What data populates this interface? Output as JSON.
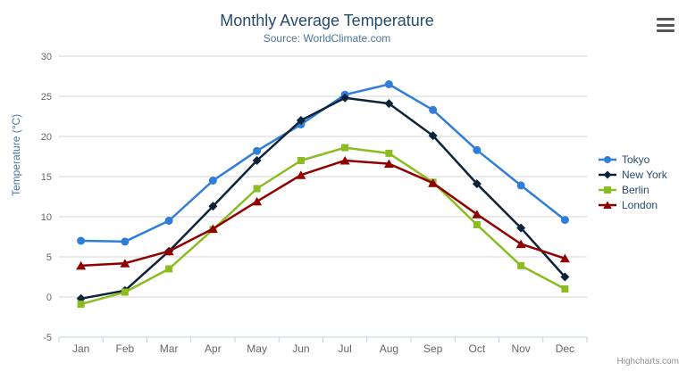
{
  "header": {
    "title": "Monthly Average Temperature",
    "subtitle": "Source: WorldClimate.com"
  },
  "export_menu": {
    "icon": "hamburger-icon",
    "tooltip": "Chart context menu"
  },
  "credits": {
    "label": "Highcharts.com"
  },
  "colors": {
    "title": "#274b6d",
    "subtitle": "#4d759e",
    "axis_label": "#666666",
    "axis_line": "#c0d0e0",
    "gridline": "#d6d6d6",
    "legend_text": "#274b6d",
    "credits_text": "#909090"
  },
  "chart_data": {
    "type": "line",
    "title": "Monthly Average Temperature",
    "subtitle": "Source: WorldClimate.com",
    "categories": [
      "Jan",
      "Feb",
      "Mar",
      "Apr",
      "May",
      "Jun",
      "Jul",
      "Aug",
      "Sep",
      "Oct",
      "Nov",
      "Dec"
    ],
    "series": [
      {
        "name": "Tokyo",
        "color": "#2f7ed8",
        "marker": "circle",
        "values": [
          7.0,
          6.9,
          9.5,
          14.5,
          18.2,
          21.5,
          25.2,
          26.5,
          23.3,
          18.3,
          13.9,
          9.6
        ]
      },
      {
        "name": "New York",
        "color": "#0d233a",
        "marker": "diamond",
        "values": [
          -0.2,
          0.8,
          5.7,
          11.3,
          17.0,
          22.0,
          24.8,
          24.1,
          20.1,
          14.1,
          8.6,
          2.5
        ]
      },
      {
        "name": "Berlin",
        "color": "#8bbc21",
        "marker": "square",
        "values": [
          -0.9,
          0.6,
          3.5,
          8.4,
          13.5,
          17.0,
          18.6,
          17.9,
          14.3,
          9.0,
          3.9,
          1.0
        ]
      },
      {
        "name": "London",
        "color": "#910000",
        "marker": "triangle",
        "values": [
          3.9,
          4.2,
          5.7,
          8.5,
          11.9,
          15.2,
          17.0,
          16.6,
          14.2,
          10.3,
          6.6,
          4.8
        ]
      }
    ],
    "xlabel": "",
    "ylabel": "Temperature (°C)",
    "ylim": [
      -5,
      30
    ],
    "ytick_step": 5,
    "grid": true,
    "legend_position": "right"
  }
}
